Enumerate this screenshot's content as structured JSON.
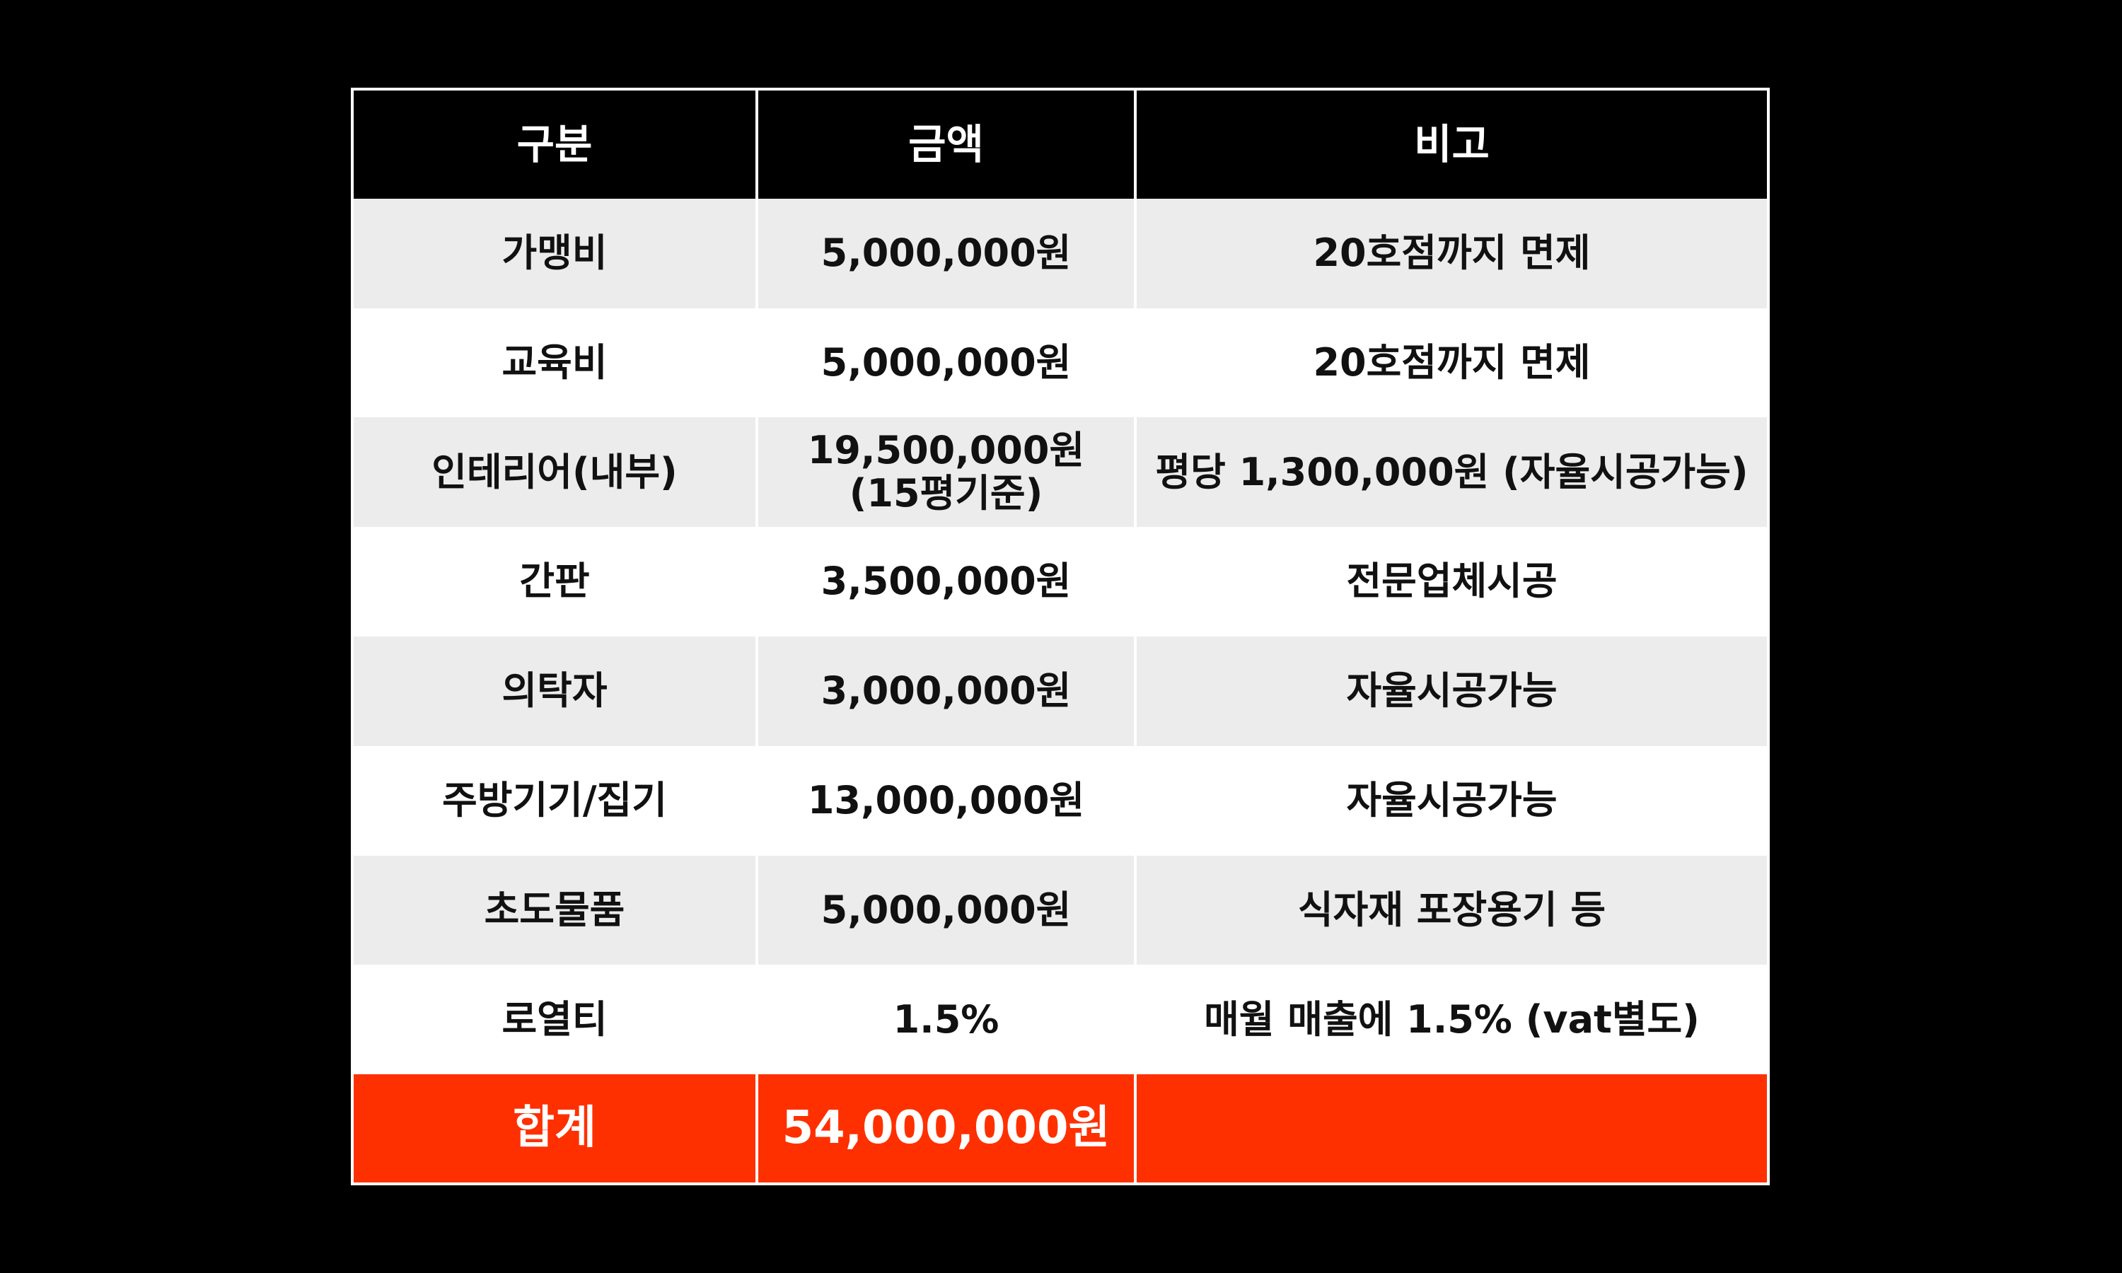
{
  "table": {
    "headers": [
      "구분",
      "금액",
      "비고"
    ],
    "rows": [
      {
        "category": "가맹비",
        "amount": "5,000,000원",
        "amount_note": "",
        "remark": "20호점까지 면제"
      },
      {
        "category": "교육비",
        "amount": "5,000,000원",
        "amount_note": "",
        "remark": "20호점까지 면제"
      },
      {
        "category": "인테리어(내부)",
        "amount": "19,500,000원",
        "amount_note": "(15평기준)",
        "remark": "평당 1,300,000원 (자율시공가능)"
      },
      {
        "category": "간판",
        "amount": "3,500,000원",
        "amount_note": "",
        "remark": "전문업체시공"
      },
      {
        "category": "의탁자",
        "amount": "3,000,000원",
        "amount_note": "",
        "remark": "자율시공가능"
      },
      {
        "category": "주방기기/집기",
        "amount": "13,000,000원",
        "amount_note": "",
        "remark": "자율시공가능"
      },
      {
        "category": "초도물품",
        "amount": "5,000,000원",
        "amount_note": "",
        "remark": "식자재 포장용기 등"
      },
      {
        "category": "로열티",
        "amount": "1.5%",
        "amount_note": "",
        "remark": "매월 매출에 1.5% (vat별도)"
      }
    ],
    "total": {
      "label": "합계",
      "amount": "54,000,000원",
      "remark": ""
    }
  },
  "colors": {
    "background": "#000000",
    "header_bg": "#000000",
    "header_text": "#ffffff",
    "row_alt_bg": "#ececec",
    "row_bg": "#ffffff",
    "total_bg": "#ff3000",
    "total_text": "#ffffff"
  }
}
